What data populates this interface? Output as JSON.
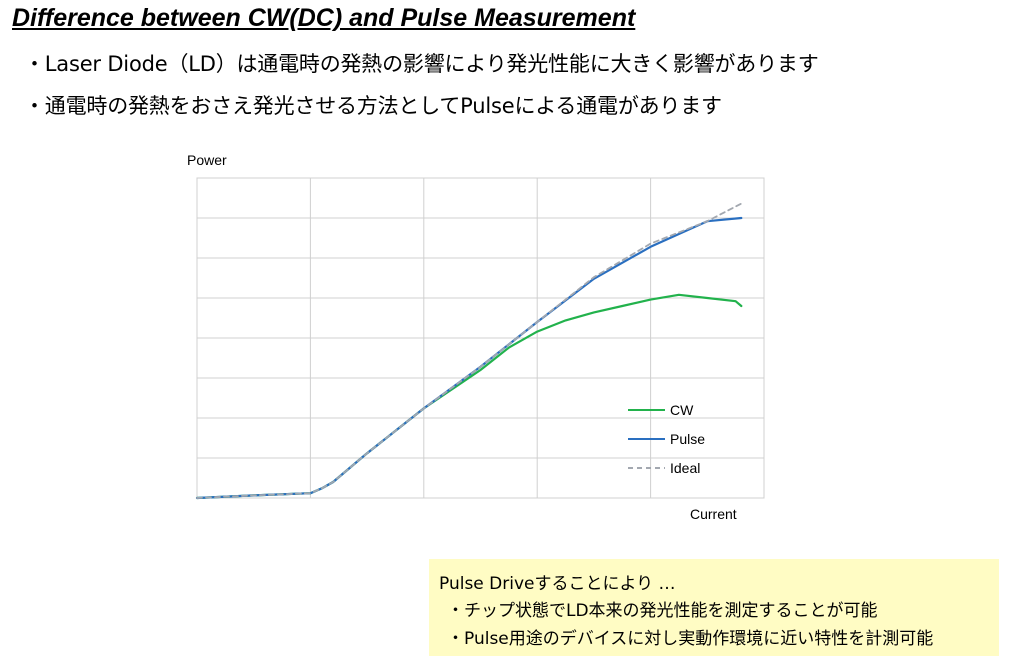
{
  "title": "Difference between CW(DC) and Pulse Measurement",
  "bullets": [
    "・Laser Diode（LD）は通電時の発熱の影響により発光性能に大きく影響があります",
    "・通電時の発熱をおさえ発光させる方法としてPulseによる通電があります"
  ],
  "note": {
    "heading": "Pulse Driveすることにより …",
    "items": [
      "・チップ状態でLD本来の発光性能を測定することが可能",
      "・Pulse用途のデバイスに対し実動作環境に近い特性を計測可能"
    ]
  },
  "colors": {
    "cw": "#22b24c",
    "pulse": "#2a6fc0",
    "ideal": "#a3a8b0",
    "grid": "#d0d0d0",
    "note_bg": "#fffcc4"
  },
  "chart_data": {
    "type": "line",
    "ylabel": "Power",
    "xlabel": "Current",
    "xlim": [
      0,
      100
    ],
    "ylim": [
      0,
      100
    ],
    "grid": true,
    "legend_position": "lower-right",
    "series": [
      {
        "name": "CW",
        "color": "#22b24c",
        "dash": false,
        "x": [
          0,
          10,
          20,
          22,
          24,
          30,
          40,
          50,
          55,
          60,
          65,
          70,
          75,
          80,
          85,
          90,
          95,
          96
        ],
        "y": [
          0,
          0.8,
          1.5,
          3,
          5,
          14,
          28,
          40,
          47,
          52,
          55.5,
          58,
          60,
          62,
          63.5,
          62.5,
          61.5,
          60
        ]
      },
      {
        "name": "Pulse",
        "color": "#2a6fc0",
        "dash": false,
        "x": [
          0,
          10,
          20,
          22,
          24,
          30,
          40,
          50,
          60,
          70,
          80,
          85,
          90,
          96
        ],
        "y": [
          0,
          0.8,
          1.5,
          3,
          5,
          14,
          28,
          41,
          55,
          68.5,
          78.5,
          82.5,
          86.5,
          87.5
        ]
      },
      {
        "name": "Ideal",
        "color": "#a3a8b0",
        "dash": true,
        "x": [
          0,
          10,
          20,
          22,
          24,
          30,
          40,
          50,
          60,
          70,
          80,
          90,
          96
        ],
        "y": [
          0,
          0.8,
          1.5,
          3,
          5,
          14,
          28,
          41,
          55,
          69,
          79.5,
          86.5,
          92
        ]
      }
    ]
  }
}
